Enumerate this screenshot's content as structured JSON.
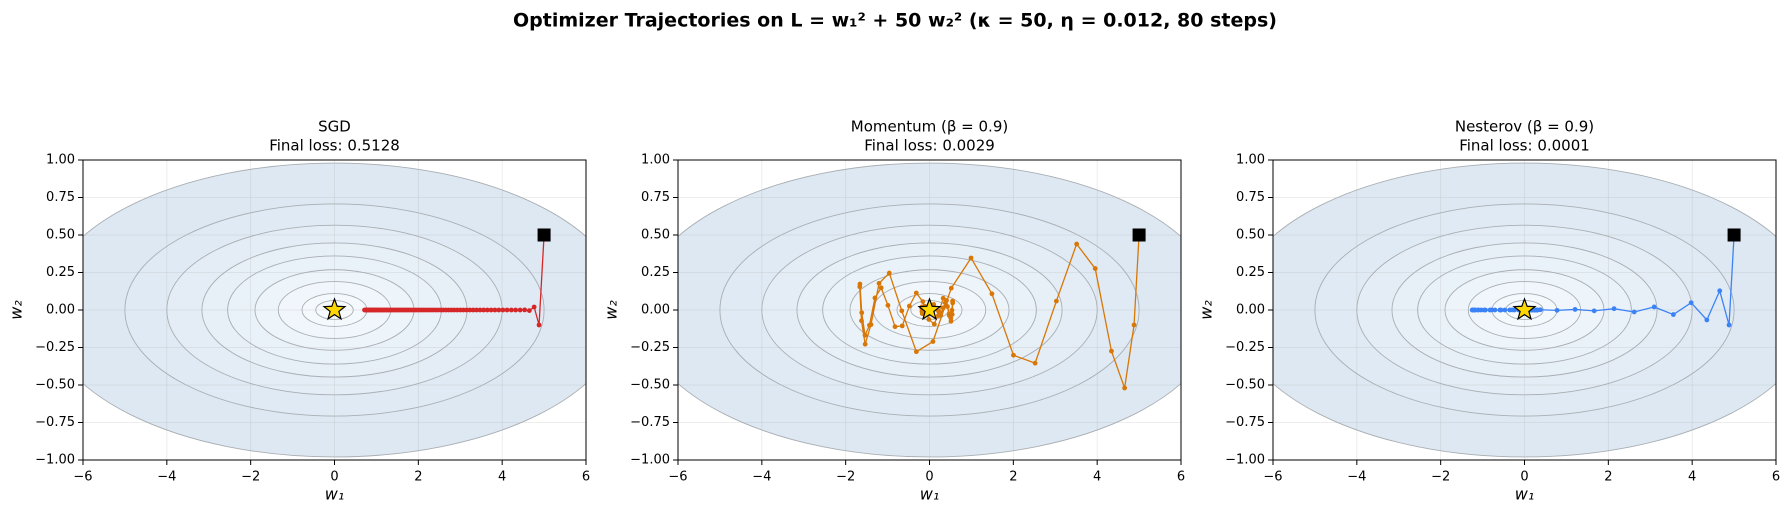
{
  "title": "Optimizer Trajectories on L = w₁² + 50 w₂² (κ = 50, η = 0.012, 80 steps)",
  "chart_data": [
    {
      "type": "line",
      "title": "SGD",
      "subtitle": "Final loss: 0.5128",
      "x_label": "w₁",
      "y_label": "w₂",
      "xlim": [
        -6,
        6
      ],
      "ylim": [
        -1,
        1
      ],
      "xticks": [
        {
          "value": -6,
          "label": "−6"
        },
        {
          "value": -4,
          "label": "−4"
        },
        {
          "value": -2,
          "label": "−2"
        },
        0,
        2,
        4,
        6
      ],
      "yticks": [
        {
          "value": -1,
          "label": "−1.00"
        },
        {
          "value": -0.75,
          "label": "−0.75"
        },
        {
          "value": -0.5,
          "label": "−0.50"
        },
        {
          "value": -0.25,
          "label": "−0.25"
        },
        {
          "value": 0,
          "label": "0.00"
        },
        {
          "value": 0.25,
          "label": "0.25"
        },
        {
          "value": 0.5,
          "label": "0.50"
        },
        {
          "value": 0.75,
          "label": "0.75"
        },
        {
          "value": 1,
          "label": "1.00"
        }
      ],
      "grid": true,
      "contour_levels": [
        0.2,
        0.6,
        1.8,
        3.6,
        6.5,
        10,
        16,
        25,
        48
      ],
      "optimum": {
        "x": 0,
        "y": 0
      },
      "series": [
        {
          "color": "#d62728",
          "x": [
            5,
            4.88,
            4.7629,
            4.6485,
            4.537,
            4.4281,
            4.3218,
            4.2181,
            4.1169,
            4.0181,
            3.9216,
            3.8275,
            3.7357,
            3.646,
            3.5585,
            3.4731,
            3.3898,
            3.3084,
            3.229,
            3.1515,
            3.0759,
            3.002,
            2.93,
            2.8597,
            2.791,
            2.7241,
            2.6587,
            2.5949,
            2.5326,
            2.4718,
            2.4125,
            2.3546,
            2.2981,
            2.2429,
            2.1891,
            2.1366,
            2.0853,
            2.0352,
            1.9864,
            1.9387,
            1.8922,
            1.8468,
            1.8024,
            1.7592,
            1.717,
            1.6758,
            1.6355,
            1.5963,
            1.558,
            1.5206,
            1.4841,
            1.4485,
            1.4137,
            1.3798,
            1.3467,
            1.3144,
            1.2828,
            1.252,
            1.222,
            1.1927,
            1.164,
            1.1361,
            1.1088,
            1.0822,
            1.0562,
            1.0309,
            1.0061,
            0.982,
            0.9584,
            0.9354,
            0.913,
            0.8911,
            0.8697,
            0.8488,
            0.8284,
            0.8086,
            0.7892,
            0.7702,
            0.7517,
            0.7337,
            0.7161
          ],
          "values": [
            0.5,
            -0.1,
            0.02,
            -0.004,
            0.0008,
            -0.0002,
            0,
            0,
            0,
            0,
            0,
            0,
            0,
            0,
            0,
            0,
            0,
            0,
            0,
            0,
            0,
            0,
            0,
            0,
            0,
            0,
            0,
            0,
            0,
            0,
            0,
            0,
            0,
            0,
            0,
            0,
            0,
            0,
            0,
            0,
            0,
            0,
            0,
            0,
            0,
            0,
            0,
            0,
            0,
            0,
            0,
            0,
            0,
            0,
            0,
            0,
            0,
            0,
            0,
            0,
            0,
            0,
            0,
            0,
            0,
            0,
            0,
            0,
            0,
            0,
            0,
            0,
            0,
            0,
            0,
            0,
            0,
            0,
            0,
            0,
            0
          ]
        }
      ]
    },
    {
      "type": "line",
      "title": "Momentum (β = 0.9)",
      "subtitle": "Final loss: 0.0029",
      "x_label": "w₁",
      "y_label": "w₂",
      "xlim": [
        -6,
        6
      ],
      "ylim": [
        -1,
        1
      ],
      "xticks": [
        {
          "value": -6,
          "label": "−6"
        },
        {
          "value": -4,
          "label": "−4"
        },
        {
          "value": -2,
          "label": "−2"
        },
        0,
        2,
        4,
        6
      ],
      "yticks": [
        {
          "value": -1,
          "label": "−1.00"
        },
        {
          "value": -0.75,
          "label": "−0.75"
        },
        {
          "value": -0.5,
          "label": "−0.50"
        },
        {
          "value": -0.25,
          "label": "−0.25"
        },
        {
          "value": 0,
          "label": "0.00"
        },
        {
          "value": 0.25,
          "label": "0.25"
        },
        {
          "value": 0.5,
          "label": "0.50"
        },
        {
          "value": 0.75,
          "label": "0.75"
        },
        {
          "value": 1,
          "label": "1.00"
        }
      ],
      "grid": true,
      "contour_levels": [
        0.2,
        0.6,
        1.8,
        3.6,
        6.5,
        10,
        16,
        25,
        48
      ],
      "optimum": {
        "x": 0,
        "y": 0
      },
      "series": [
        {
          "color": "#d97706",
          "x": [
            5,
            4.88,
            4.6549,
            4.3406,
            3.9536,
            3.5104,
            3.0273,
            2.5199,
            2.0028,
            1.4893,
            0.9914,
            0.5195,
            0.0823,
            -0.3132,
            -0.6616,
            -0.9593,
            -1.2042,
            -1.3957,
            -1.5346,
            -1.6228,
            -1.6632,
            -1.6596,
            -1.6165,
            -1.5389,
            -1.4321,
            -1.3016,
            -1.1529,
            -0.9914,
            -0.8223,
            -0.6504,
            -0.4801,
            -0.3153,
            -0.1594,
            -0.0153,
            0.1148,
            0.2291,
            0.3265,
            0.4063,
            0.4684,
            0.5131,
            0.541,
            0.5531,
            0.5507,
            0.5353,
            0.5086,
            0.4724,
            0.4285,
            0.3787,
            0.3248,
            0.2685,
            0.2114,
            0.1549,
            0.1003,
            0.0488,
            0.0013,
            -0.0415,
            -0.079,
            -0.1109,
            -0.137,
            -0.1572,
            -0.1716,
            -0.1804,
            -0.184,
            -0.1828,
            -0.1773,
            -0.1681,
            -0.1558,
            -0.141,
            -0.1243,
            -0.1063,
            -0.0876,
            -0.0687,
            -0.05,
            -0.032,
            -0.015,
            0.0007,
            0.0148,
            0.0271,
            0.0375,
            0.046,
            0.0525
          ],
          "values": [
            0.5,
            -0.1,
            -0.52,
            -0.274,
            0.2762,
            0.4399,
            0.0594,
            -0.3543,
            -0.3015,
            0.1078,
            0.3468,
            0.1457,
            -0.2101,
            -0.2782,
            -0.0057,
            0.2464,
            0.1776,
            -0.0974,
            -0.228,
            -0.0719,
            0.1549,
            0.1731,
            -0.0182,
            -0.1685,
            -0.1016,
            0.0805,
            0.1478,
            0.031,
            -0.1113,
            -0.1058,
            0.0261,
            0.1135,
            0.056,
            -0.063,
            -0.0945,
            -0.0095,
            0.0784,
            0.0634,
            -0.0262,
            -0.0754,
            -0.0292,
            0.0474,
            0.0595,
            -0.001,
            -0.0543,
            -0.0371,
            0.0229,
            0.0494,
            0.014,
            -0.0347,
            -0.0369,
            0.0054,
            0.037,
            0.021,
            -0.0186,
            -0.0319,
            -0.0056,
            0.0248,
            0.0224,
            -0.0066,
            -0.0248,
            -0.0114,
            0.0143,
            0.0203,
            0.0013,
            -0.0174,
            -0.0134,
            0.0063,
            0.0165,
            0.0059,
            -0.0107,
            -0.0128,
            0.0007,
            0.012,
            0.0078,
            -0.0053,
            -0.0107,
            -0.0027,
            0.0077,
            0.0078,
            -0.0015
          ]
        }
      ]
    },
    {
      "type": "line",
      "title": "Nesterov (β = 0.9)",
      "subtitle": "Final loss: 0.0001",
      "x_label": "w₁",
      "y_label": "w₂",
      "xlim": [
        -6,
        6
      ],
      "ylim": [
        -1,
        1
      ],
      "xticks": [
        {
          "value": -6,
          "label": "−6"
        },
        {
          "value": -4,
          "label": "−4"
        },
        {
          "value": -2,
          "label": "−2"
        },
        0,
        2,
        4,
        6
      ],
      "yticks": [
        {
          "value": -1,
          "label": "−1.00"
        },
        {
          "value": -0.75,
          "label": "−0.75"
        },
        {
          "value": -0.5,
          "label": "−0.50"
        },
        {
          "value": -0.25,
          "label": "−0.25"
        },
        {
          "value": 0,
          "label": "0.00"
        },
        {
          "value": 0.25,
          "label": "0.25"
        },
        {
          "value": 0.5,
          "label": "0.50"
        },
        {
          "value": 0.75,
          "label": "0.75"
        },
        {
          "value": 1,
          "label": "1.00"
        }
      ],
      "grid": true,
      "contour_levels": [
        0.2,
        0.6,
        1.8,
        3.6,
        6.5,
        10,
        16,
        25,
        48
      ],
      "optimum": {
        "x": 0,
        "y": 0
      },
      "series": [
        {
          "color": "#3b82f6",
          "x": [
            5,
            4.88,
            4.6575,
            4.3503,
            3.9761,
            3.552,
            3.0942,
            2.6178,
            2.1365,
            1.6625,
            1.2062,
            0.7764,
            0.3802,
            0.0231,
            -0.2911,
            -0.5601,
            -0.783,
            -0.96,
            -1.0924,
            -1.1825,
            -1.2333,
            -1.2483,
            -1.2315,
            -1.1872,
            -1.1198,
            -1.0337,
            -0.9333,
            -0.8227,
            -0.7058,
            -0.5862,
            -0.4671,
            -0.3513,
            -0.2412,
            -0.1387,
            -0.0453,
            0.0378,
            0.1099,
            0.1706,
            0.2198,
            0.2578,
            0.285,
            0.3021,
            0.3099,
            0.3093,
            0.3014,
            0.2872,
            0.2678,
            0.2443,
            0.2178,
            0.1893,
            0.1597,
            0.1299,
            0.1006,
            0.0725,
            0.0461,
            0.0218,
            -0.0001,
            -0.0193,
            -0.0357,
            -0.0493,
            -0.0601,
            -0.0681,
            -0.0735,
            -0.0765,
            -0.0773,
            -0.0762,
            -0.0734,
            -0.0692,
            -0.0639,
            -0.0577,
            -0.0509,
            -0.0437,
            -0.0363,
            -0.0289,
            -0.0217,
            -0.0149,
            -0.0086,
            -0.0029,
            0.0022,
            0.0066,
            0.0103
          ],
          "values": [
            0.5,
            -0.1,
            0.128,
            -0.0666,
            0.0484,
            -0.0304,
            0.0203,
            -0.0132,
            0.0087,
            -0.0057,
            0.0037,
            -0.0024,
            0.0016,
            -0.001,
            0.0007,
            -0.0004,
            0.0003,
            -0.0002,
            0.0001,
            -0.0001,
            0,
            0,
            0,
            0,
            0,
            0,
            0,
            0,
            0,
            0,
            0,
            0,
            0,
            0,
            0,
            0,
            0,
            0,
            0,
            0,
            0,
            0,
            0,
            0,
            0,
            0,
            0,
            0,
            0,
            0,
            0,
            0,
            0,
            0,
            0,
            0,
            0,
            0,
            0,
            0,
            0,
            0,
            0,
            0,
            0,
            0,
            0,
            0,
            0,
            0,
            0,
            0,
            0,
            0,
            0,
            0,
            0,
            0,
            0,
            0,
            0
          ]
        }
      ]
    }
  ]
}
